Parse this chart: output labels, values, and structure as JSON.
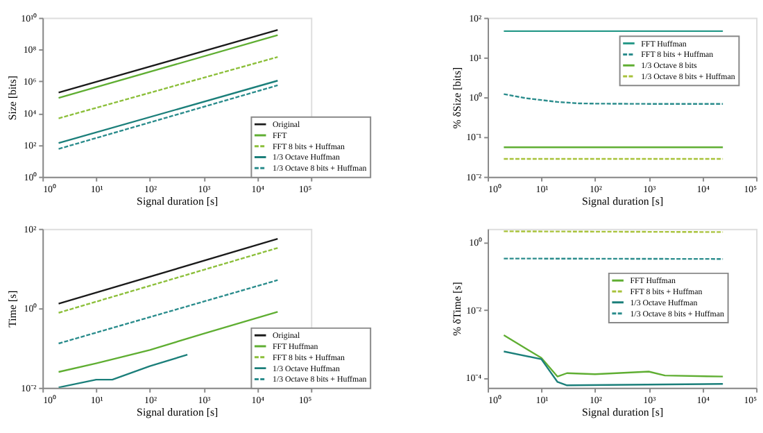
{
  "chart_data": [
    {
      "type": "line",
      "xlabel": "Signal duration [s]",
      "ylabel": "Size [bits]",
      "log": "xy",
      "legend": "bottom right",
      "xlim": [
        1,
        100000
      ],
      "ylim": [
        1,
        10000000000
      ],
      "xticks": [
        {
          "value": 1,
          "label": "10⁰"
        },
        {
          "value": 10,
          "label": "10¹"
        },
        {
          "value": 100,
          "label": "10²"
        },
        {
          "value": 1000,
          "label": "10³"
        },
        {
          "value": 10000,
          "label": "10⁴"
        },
        {
          "value": 100000,
          "label": "10⁵"
        }
      ],
      "yticks": [
        {
          "value": 1,
          "label": "10⁰"
        },
        {
          "value": 100,
          "label": "10²"
        },
        {
          "value": 10000,
          "label": "10⁴"
        },
        {
          "value": 1000000,
          "label": "10⁶"
        },
        {
          "value": 100000000,
          "label": "10⁸"
        },
        {
          "value": 10000000000,
          "label": "10¹⁰"
        }
      ],
      "series": [
        {
          "name": "Original",
          "color": "#1a1a1a",
          "line_style": "solid",
          "x": [
            2,
            24000
          ],
          "values": [
            195000,
            1700000000
          ]
        },
        {
          "name": "FFT",
          "color": "#5fae32",
          "line_style": "solid",
          "x": [
            2,
            24000
          ],
          "values": [
            90000,
            800000000
          ]
        },
        {
          "name": "FFT 8 bits + Huffman",
          "color": "#8cbf3a",
          "line_style": "dashed",
          "x": [
            2,
            24000
          ],
          "values": [
            4700,
            34000000
          ]
        },
        {
          "name": "1/3 Octave Huffman",
          "color": "#1b7f7a",
          "line_style": "solid",
          "x": [
            2,
            24000
          ],
          "values": [
            130,
            1100000
          ]
        },
        {
          "name": "1/3 Octave 8 bits + Huffman",
          "color": "#2a8c8c",
          "line_style": "dashed",
          "x": [
            2,
            24000
          ],
          "values": [
            56,
            560000
          ]
        }
      ]
    },
    {
      "type": "line",
      "xlabel": "Signal duration [s]",
      "ylabel": "% δSize [bits]",
      "log": "xy",
      "legend": "top right",
      "xlim": [
        1,
        100000
      ],
      "ylim": [
        0.01,
        100
      ],
      "xticks": [
        {
          "value": 1,
          "label": "10⁰"
        },
        {
          "value": 10,
          "label": "10¹"
        },
        {
          "value": 100,
          "label": "10²"
        },
        {
          "value": 1000,
          "label": "10³"
        },
        {
          "value": 10000,
          "label": "10⁴"
        },
        {
          "value": 100000,
          "label": "10⁵"
        }
      ],
      "yticks": [
        {
          "value": 0.01,
          "label": "10⁻²"
        },
        {
          "value": 0.1,
          "label": "10⁻¹"
        },
        {
          "value": 1,
          "label": "10⁰"
        },
        {
          "value": 10,
          "label": "10¹"
        },
        {
          "value": 100,
          "label": "10²"
        }
      ],
      "series": [
        {
          "name": "FFT Huffman",
          "color": "#2a9a8a",
          "line_style": "solid",
          "x": [
            2,
            24000
          ],
          "values": [
            46,
            46
          ]
        },
        {
          "name": "FFT 8 bits + Huffman",
          "color": "#2a8c8c",
          "line_style": "dashed",
          "x": [
            2,
            5,
            10,
            20,
            50,
            100,
            1000,
            24000
          ],
          "values": [
            1.2,
            0.95,
            0.85,
            0.76,
            0.7,
            0.69,
            0.68,
            0.68
          ]
        },
        {
          "name": "1/3 Octave 8 bits",
          "color": "#5fae32",
          "line_style": "solid",
          "x": [
            2,
            24000
          ],
          "values": [
            0.055,
            0.055
          ]
        },
        {
          "name": "1/3 Octave 8 bits + Huffman",
          "color": "#a8c23a",
          "line_style": "dashed",
          "x": [
            2,
            24000
          ],
          "values": [
            0.028,
            0.028
          ]
        }
      ]
    },
    {
      "type": "line",
      "xlabel": "Signal duration [s]",
      "ylabel": "Time [s]",
      "log": "xy",
      "legend": "bottom right",
      "xlim": [
        1,
        100000
      ],
      "ylim": [
        0.01,
        100
      ],
      "xticks": [
        {
          "value": 1,
          "label": "10⁰"
        },
        {
          "value": 10,
          "label": "10¹"
        },
        {
          "value": 100,
          "label": "10²"
        },
        {
          "value": 1000,
          "label": "10³"
        },
        {
          "value": 10000,
          "label": "10⁴"
        },
        {
          "value": 100000,
          "label": "10⁵"
        }
      ],
      "yticks": [
        {
          "value": 0.01,
          "label": "10⁻²"
        },
        {
          "value": 1,
          "label": "10⁰"
        },
        {
          "value": 100,
          "label": "10²"
        }
      ],
      "series": [
        {
          "name": "Original",
          "color": "#1a1a1a",
          "line_style": "solid",
          "x": [
            2,
            24000
          ],
          "values": [
            1.3,
            56
          ]
        },
        {
          "name": "FFT Huffman",
          "color": "#5fae32",
          "line_style": "solid",
          "x": [
            2,
            10,
            100,
            1000,
            24000
          ],
          "values": [
            0.025,
            0.041,
            0.089,
            0.23,
            0.81
          ]
        },
        {
          "name": "FFT 8 bits + Huffman",
          "color": "#8cbf3a",
          "line_style": "dashed",
          "x": [
            2,
            24000
          ],
          "values": [
            0.77,
            33
          ]
        },
        {
          "name": "1/3 Octave Huffman",
          "color": "#1b7f7a",
          "line_style": "solid",
          "x": [
            2,
            10,
            20,
            100,
            500
          ],
          "values": [
            0.0102,
            0.016,
            0.016,
            0.035,
            0.068
          ]
        },
        {
          "name": "1/3 Octave 8 bits + Huffman",
          "color": "#2a8c8c",
          "line_style": "dashed",
          "x": [
            2,
            24000
          ],
          "values": [
            0.13,
            5.1
          ]
        }
      ]
    },
    {
      "type": "line",
      "xlabel": "Signal duration [s]",
      "ylabel": "% δTime [s]",
      "log": "xy",
      "legend": "right",
      "xlim": [
        1,
        100000
      ],
      "ylim": [
        5e-05,
        2.5
      ],
      "xticks": [
        {
          "value": 1,
          "label": "10⁰"
        },
        {
          "value": 10,
          "label": "10¹"
        },
        {
          "value": 100,
          "label": "10²"
        },
        {
          "value": 1000,
          "label": "10³"
        },
        {
          "value": 10000,
          "label": "10⁴"
        },
        {
          "value": 100000,
          "label": "10⁵"
        }
      ],
      "yticks": [
        {
          "value": 0.0001,
          "label": "10⁻⁴"
        },
        {
          "value": 0.01,
          "label": "10⁻²"
        },
        {
          "value": 1,
          "label": "10⁰"
        }
      ],
      "series": [
        {
          "name": "FFT Huffman",
          "color": "#5fae32",
          "line_style": "solid",
          "x": [
            2,
            10,
            20,
            30,
            100,
            1000,
            2000,
            24000
          ],
          "values": [
            0.0018,
            0.00038,
            0.000107,
            0.000135,
            0.000126,
            0.00015,
            0.000115,
            0.000107
          ]
        },
        {
          "name": "FFT 8 bits + Huffman",
          "color": "#a8c23a",
          "line_style": "dashed",
          "x": [
            2,
            24000
          ],
          "values": [
            2.1,
            2.0
          ]
        },
        {
          "name": "1/3 Octave Huffman",
          "color": "#1b7f7a",
          "line_style": "solid",
          "x": [
            2,
            10,
            20,
            30,
            24000
          ],
          "values": [
            0.00059,
            0.00035,
            7.4e-05,
            5.9e-05,
            6.5e-05
          ]
        },
        {
          "name": "1/3 Octave 8 bits + Huffman",
          "color": "#2a8c8c",
          "line_style": "dashed",
          "x": [
            2,
            24000
          ],
          "values": [
            0.33,
            0.32
          ]
        }
      ]
    }
  ]
}
